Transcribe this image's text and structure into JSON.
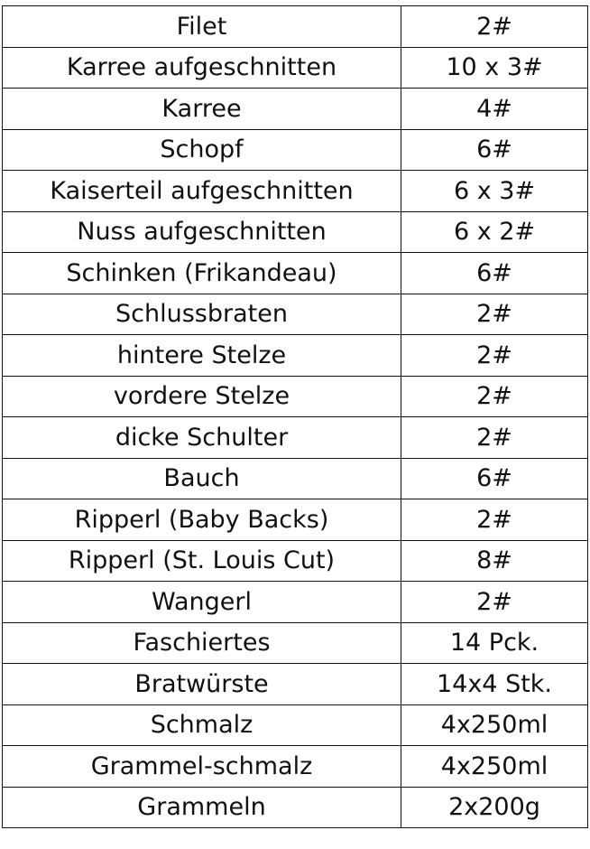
{
  "table": {
    "rows": [
      {
        "item": "Filet",
        "quantity": "2#"
      },
      {
        "item": "Karree aufgeschnitten",
        "quantity": "10 x 3#"
      },
      {
        "item": "Karree",
        "quantity": "4#"
      },
      {
        "item": "Schopf",
        "quantity": "6#"
      },
      {
        "item": "Kaiserteil aufgeschnitten",
        "quantity": "6 x 3#"
      },
      {
        "item": "Nuss aufgeschnitten",
        "quantity": "6 x 2#"
      },
      {
        "item": "Schinken (Frikandeau)",
        "quantity": "6#"
      },
      {
        "item": "Schlussbraten",
        "quantity": "2#"
      },
      {
        "item": "hintere Stelze",
        "quantity": "2#"
      },
      {
        "item": "vordere Stelze",
        "quantity": "2#"
      },
      {
        "item": "dicke Schulter",
        "quantity": "2#"
      },
      {
        "item": "Bauch",
        "quantity": "6#"
      },
      {
        "item": "Ripperl (Baby Backs)",
        "quantity": "2#"
      },
      {
        "item": "Ripperl (St. Louis Cut)",
        "quantity": "8#"
      },
      {
        "item": "Wangerl",
        "quantity": "2#"
      },
      {
        "item": "Faschiertes",
        "quantity": "14 Pck."
      },
      {
        "item": "Bratwürste",
        "quantity": "14x4 Stk."
      },
      {
        "item": "Schmalz",
        "quantity": "4x250ml"
      },
      {
        "item": "Grammel-schmalz",
        "quantity": "4x250ml"
      },
      {
        "item": "Grammeln",
        "quantity": "2x200g"
      }
    ]
  }
}
